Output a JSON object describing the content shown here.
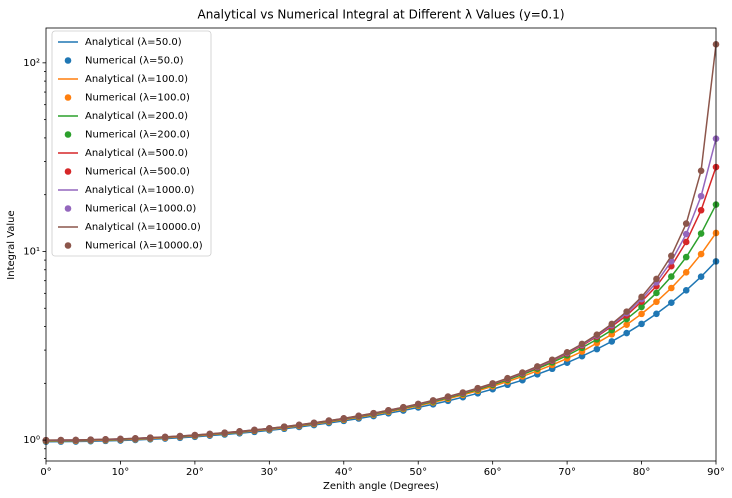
{
  "chart_data": {
    "type": "line",
    "title": "Analytical vs Numerical Integral at Different λ Values (y=0.1)",
    "x_label": "Zenith angle (Degrees)",
    "y_label": "Integral Value",
    "log_y": true,
    "legend": "upper left",
    "xlim": [
      0,
      90
    ],
    "xticks": [
      {
        "value": 0,
        "label": "0°"
      },
      {
        "value": 10,
        "label": "10°"
      },
      {
        "value": 20,
        "label": "20°"
      },
      {
        "value": 30,
        "label": "30°"
      },
      {
        "value": 40,
        "label": "40°"
      },
      {
        "value": 50,
        "label": "50°"
      },
      {
        "value": 60,
        "label": "60°"
      },
      {
        "value": 70,
        "label": "70°"
      },
      {
        "value": 80,
        "label": "80°"
      },
      {
        "value": 90,
        "label": "90°"
      }
    ],
    "ylim": [
      0.775,
      153
    ],
    "yticks": [
      {
        "value": 1,
        "label": "10⁰"
      },
      {
        "value": 10,
        "label": "10¹"
      },
      {
        "value": 100,
        "label": "10²"
      }
    ],
    "yminorticks": [
      0.8,
      0.9,
      2,
      3,
      4,
      5,
      6,
      7,
      8,
      9,
      20,
      30,
      40,
      50,
      60,
      70,
      80,
      90
    ],
    "x": [
      0,
      2,
      4,
      6,
      8,
      10,
      12,
      14,
      16,
      18,
      20,
      22,
      24,
      26,
      28,
      30,
      32,
      34,
      36,
      38,
      40,
      42,
      44,
      46,
      48,
      50,
      52,
      54,
      56,
      58,
      60,
      62,
      64,
      66,
      68,
      70,
      72,
      74,
      76,
      78,
      80,
      82,
      84,
      86,
      88,
      90
    ],
    "series": [
      {
        "name": "Analytical (λ=50.0)",
        "style": "line",
        "color": "#1f77b4",
        "values": [
          0.981,
          0.982,
          0.983,
          0.987,
          0.991,
          0.995,
          1.002,
          1.01,
          1.019,
          1.029,
          1.041,
          1.056,
          1.071,
          1.087,
          1.106,
          1.127,
          1.149,
          1.174,
          1.202,
          1.232,
          1.265,
          1.302,
          1.342,
          1.387,
          1.435,
          1.49,
          1.549,
          1.615,
          1.689,
          1.771,
          1.863,
          1.966,
          2.079,
          2.232,
          2.39,
          2.572,
          2.785,
          3.036,
          3.336,
          3.694,
          4.132,
          4.675,
          5.354,
          6.223,
          7.351,
          8.862
        ]
      },
      {
        "name": "Numerical (λ=50.0)",
        "style": "scatter",
        "color": "#1f77b4",
        "values": [
          0.981,
          0.982,
          0.983,
          0.987,
          0.991,
          0.995,
          1.002,
          1.01,
          1.019,
          1.029,
          1.041,
          1.056,
          1.071,
          1.087,
          1.106,
          1.127,
          1.149,
          1.174,
          1.202,
          1.232,
          1.265,
          1.302,
          1.342,
          1.387,
          1.435,
          1.49,
          1.549,
          1.615,
          1.689,
          1.771,
          1.863,
          1.966,
          2.079,
          2.232,
          2.39,
          2.572,
          2.785,
          3.036,
          3.336,
          3.694,
          4.132,
          4.675,
          5.354,
          6.223,
          7.351,
          8.862
        ]
      },
      {
        "name": "Analytical (λ=100.0)",
        "style": "line",
        "color": "#ff7f0e",
        "values": [
          0.99,
          0.991,
          0.992,
          0.996,
          1.0,
          1.005,
          1.011,
          1.02,
          1.029,
          1.04,
          1.052,
          1.067,
          1.083,
          1.1,
          1.12,
          1.14,
          1.163,
          1.189,
          1.218,
          1.25,
          1.284,
          1.323,
          1.365,
          1.412,
          1.463,
          1.521,
          1.585,
          1.656,
          1.736,
          1.826,
          1.928,
          2.044,
          2.176,
          2.329,
          2.505,
          2.711,
          2.949,
          3.27,
          3.637,
          4.093,
          4.669,
          5.414,
          6.404,
          7.758,
          9.686,
          12.533
        ]
      },
      {
        "name": "Numerical (λ=100.0)",
        "style": "scatter",
        "color": "#ff7f0e",
        "values": [
          0.99,
          0.991,
          0.992,
          0.996,
          1.0,
          1.005,
          1.011,
          1.02,
          1.029,
          1.04,
          1.052,
          1.067,
          1.083,
          1.1,
          1.12,
          1.14,
          1.163,
          1.189,
          1.218,
          1.25,
          1.284,
          1.323,
          1.365,
          1.412,
          1.463,
          1.521,
          1.585,
          1.656,
          1.736,
          1.826,
          1.928,
          2.044,
          2.176,
          2.329,
          2.505,
          2.711,
          2.949,
          3.27,
          3.637,
          4.093,
          4.669,
          5.414,
          6.404,
          7.758,
          9.686,
          12.533
        ]
      },
      {
        "name": "Analytical (λ=200.0)",
        "style": "line",
        "color": "#2ca02c",
        "values": [
          0.995,
          0.996,
          0.997,
          1.001,
          1.005,
          1.01,
          1.017,
          1.026,
          1.035,
          1.045,
          1.058,
          1.073,
          1.088,
          1.106,
          1.126,
          1.147,
          1.171,
          1.197,
          1.227,
          1.259,
          1.294,
          1.334,
          1.377,
          1.425,
          1.477,
          1.537,
          1.603,
          1.676,
          1.761,
          1.855,
          1.962,
          2.085,
          2.226,
          2.392,
          2.583,
          2.813,
          3.087,
          3.421,
          3.83,
          4.381,
          5.083,
          6.027,
          7.367,
          9.336,
          12.447,
          17.725
        ]
      },
      {
        "name": "Numerical (λ=200.0)",
        "style": "scatter",
        "color": "#2ca02c",
        "values": [
          0.995,
          0.996,
          0.997,
          1.001,
          1.005,
          1.01,
          1.017,
          1.026,
          1.035,
          1.045,
          1.058,
          1.073,
          1.088,
          1.106,
          1.126,
          1.147,
          1.171,
          1.197,
          1.227,
          1.259,
          1.294,
          1.334,
          1.377,
          1.425,
          1.477,
          1.537,
          1.603,
          1.676,
          1.761,
          1.855,
          1.962,
          2.085,
          2.226,
          2.392,
          2.583,
          2.813,
          3.087,
          3.421,
          3.83,
          4.381,
          5.083,
          6.027,
          7.367,
          9.336,
          12.447,
          17.725
        ]
      },
      {
        "name": "Analytical (λ=500.0)",
        "style": "line",
        "color": "#d62728",
        "values": [
          0.998,
          0.999,
          1.0,
          1.004,
          1.008,
          1.013,
          1.02,
          1.029,
          1.038,
          1.049,
          1.062,
          1.076,
          1.092,
          1.11,
          1.13,
          1.152,
          1.176,
          1.202,
          1.232,
          1.265,
          1.3,
          1.341,
          1.385,
          1.434,
          1.487,
          1.549,
          1.616,
          1.691,
          1.777,
          1.874,
          1.984,
          2.111,
          2.258,
          2.43,
          2.633,
          2.877,
          3.172,
          3.54,
          4.005,
          4.58,
          5.428,
          6.549,
          8.36,
          11.233,
          16.54,
          28.025
        ]
      },
      {
        "name": "Numerical (λ=500.0)",
        "style": "scatter",
        "color": "#d62728",
        "values": [
          0.998,
          0.999,
          1.0,
          1.004,
          1.008,
          1.013,
          1.02,
          1.029,
          1.038,
          1.049,
          1.062,
          1.076,
          1.092,
          1.11,
          1.13,
          1.152,
          1.176,
          1.202,
          1.232,
          1.265,
          1.3,
          1.341,
          1.385,
          1.434,
          1.487,
          1.549,
          1.616,
          1.691,
          1.777,
          1.874,
          1.984,
          2.111,
          2.258,
          2.43,
          2.633,
          2.877,
          3.172,
          3.54,
          4.005,
          4.58,
          5.428,
          6.549,
          8.36,
          11.233,
          16.54,
          28.025
        ]
      },
      {
        "name": "Analytical (λ=1000.0)",
        "style": "line",
        "color": "#9467bd",
        "values": [
          0.999,
          1.0,
          1.001,
          1.005,
          1.009,
          1.014,
          1.021,
          1.03,
          1.039,
          1.05,
          1.063,
          1.078,
          1.094,
          1.112,
          1.132,
          1.153,
          1.177,
          1.204,
          1.234,
          1.267,
          1.303,
          1.343,
          1.387,
          1.437,
          1.491,
          1.552,
          1.62,
          1.696,
          1.782,
          1.88,
          1.992,
          2.12,
          2.269,
          2.444,
          2.65,
          2.9,
          3.203,
          3.582,
          4.067,
          4.707,
          5.585,
          6.856,
          8.87,
          12.369,
          19.654,
          39.633
        ]
      },
      {
        "name": "Numerical (λ=1000.0)",
        "style": "scatter",
        "color": "#9467bd",
        "values": [
          0.999,
          1.0,
          1.001,
          1.005,
          1.009,
          1.014,
          1.021,
          1.03,
          1.039,
          1.05,
          1.063,
          1.078,
          1.094,
          1.112,
          1.132,
          1.153,
          1.177,
          1.204,
          1.234,
          1.267,
          1.303,
          1.343,
          1.387,
          1.437,
          1.491,
          1.552,
          1.62,
          1.696,
          1.782,
          1.88,
          1.992,
          2.12,
          2.269,
          2.444,
          2.65,
          2.9,
          3.203,
          3.582,
          4.067,
          4.707,
          5.585,
          6.856,
          8.87,
          12.369,
          19.654,
          39.633
        ]
      },
      {
        "name": "Analytical (λ=10000.0)",
        "style": "line",
        "color": "#8c564b",
        "values": [
          1.0,
          1.001,
          1.002,
          1.006,
          1.01,
          1.015,
          1.022,
          1.031,
          1.04,
          1.051,
          1.064,
          1.079,
          1.095,
          1.113,
          1.133,
          1.155,
          1.179,
          1.206,
          1.236,
          1.269,
          1.305,
          1.346,
          1.39,
          1.44,
          1.494,
          1.556,
          1.624,
          1.701,
          1.788,
          1.886,
          1.999,
          2.129,
          2.28,
          2.457,
          2.667,
          2.921,
          3.233,
          3.623,
          4.127,
          4.799,
          5.74,
          7.149,
          9.482,
          14.06,
          26.78,
          125.33
        ]
      },
      {
        "name": "Numerical (λ=10000.0)",
        "style": "scatter",
        "color": "#8c564b",
        "values": [
          1.0,
          1.001,
          1.002,
          1.006,
          1.01,
          1.015,
          1.022,
          1.031,
          1.04,
          1.051,
          1.064,
          1.079,
          1.095,
          1.113,
          1.133,
          1.155,
          1.179,
          1.206,
          1.236,
          1.269,
          1.305,
          1.346,
          1.39,
          1.44,
          1.494,
          1.556,
          1.624,
          1.701,
          1.788,
          1.886,
          1.999,
          2.129,
          2.28,
          2.457,
          2.667,
          2.921,
          3.233,
          3.623,
          4.127,
          4.799,
          5.74,
          7.149,
          9.482,
          14.06,
          26.78,
          125.33
        ]
      }
    ]
  }
}
